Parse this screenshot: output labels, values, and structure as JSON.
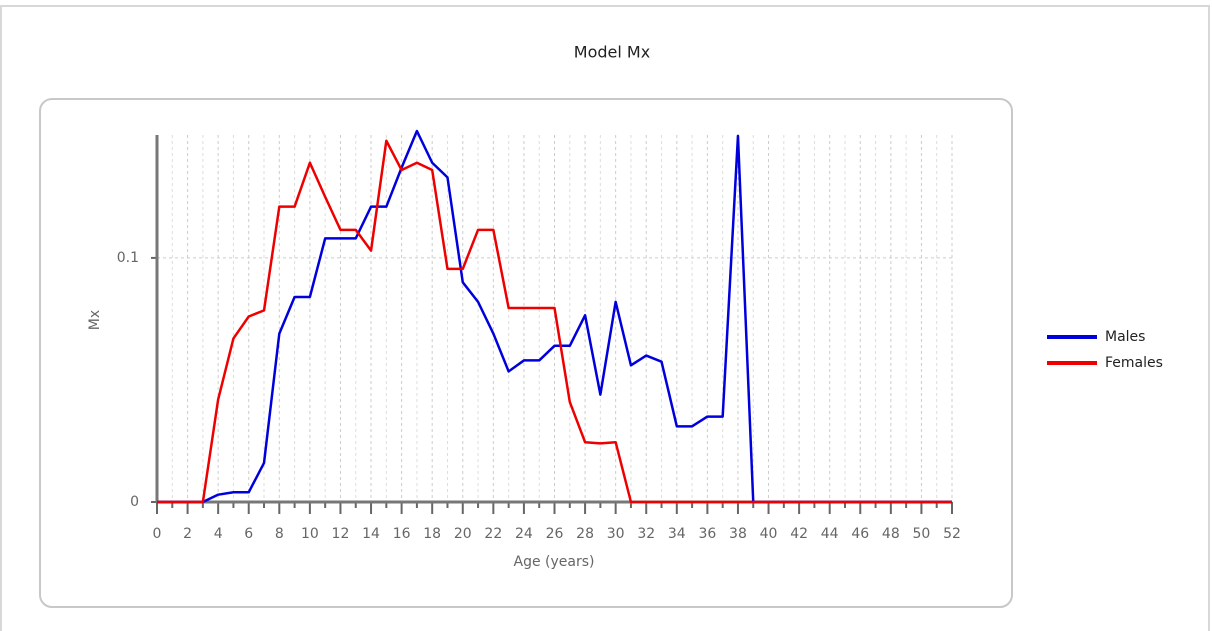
{
  "chart_data": {
    "type": "line",
    "title": "Model Mx",
    "xlabel": "Age (years)",
    "ylabel": "Mx",
    "x": [
      0,
      1,
      2,
      3,
      4,
      5,
      6,
      7,
      8,
      9,
      10,
      11,
      12,
      13,
      14,
      15,
      16,
      17,
      18,
      19,
      20,
      21,
      22,
      23,
      24,
      25,
      26,
      27,
      28,
      29,
      30,
      31,
      32,
      33,
      34,
      35,
      36,
      37,
      38,
      39,
      40,
      41,
      42,
      43,
      44,
      45,
      46,
      47,
      48,
      49,
      50,
      51,
      52
    ],
    "series": [
      {
        "name": "Males",
        "color": "#0000dd",
        "values": [
          0,
          0,
          0,
          0,
          0.003,
          0.004,
          0.004,
          0.016,
          0.069,
          0.084,
          0.084,
          0.108,
          0.108,
          0.108,
          0.121,
          0.121,
          0.137,
          0.152,
          0.139,
          0.133,
          0.09,
          0.082,
          0.069,
          0.0535,
          0.058,
          0.058,
          0.064,
          0.064,
          0.0765,
          0.044,
          0.082,
          0.056,
          0.06,
          0.0575,
          0.031,
          0.031,
          0.035,
          0.035,
          0.15,
          0,
          0,
          0,
          0,
          0,
          0,
          0,
          0,
          0,
          0,
          0,
          0,
          0,
          0
        ]
      },
      {
        "name": "Females",
        "color": "#ee0000",
        "values": [
          0,
          0,
          0,
          0,
          0.042,
          0.067,
          0.076,
          0.0785,
          0.121,
          0.121,
          0.139,
          0.125,
          0.1115,
          0.1115,
          0.103,
          0.148,
          0.136,
          0.139,
          0.136,
          0.0955,
          0.0955,
          0.1115,
          0.1115,
          0.0795,
          0.0795,
          0.0795,
          0.0795,
          0.041,
          0.0245,
          0.024,
          0.0245,
          0,
          0,
          0,
          0,
          0,
          0,
          0,
          0,
          0,
          0,
          0,
          0,
          0,
          0,
          0,
          0,
          0,
          0,
          0,
          0,
          0,
          0
        ]
      }
    ],
    "xlim": [
      0,
      52
    ],
    "xticks": [
      0,
      2,
      4,
      6,
      8,
      10,
      12,
      14,
      16,
      18,
      20,
      22,
      24,
      26,
      28,
      30,
      32,
      34,
      36,
      38,
      40,
      42,
      44,
      46,
      48,
      50,
      52
    ],
    "ylim": [
      0,
      0.152
    ],
    "yticks": [
      0,
      0.1
    ],
    "grid": true,
    "legend": "right"
  }
}
